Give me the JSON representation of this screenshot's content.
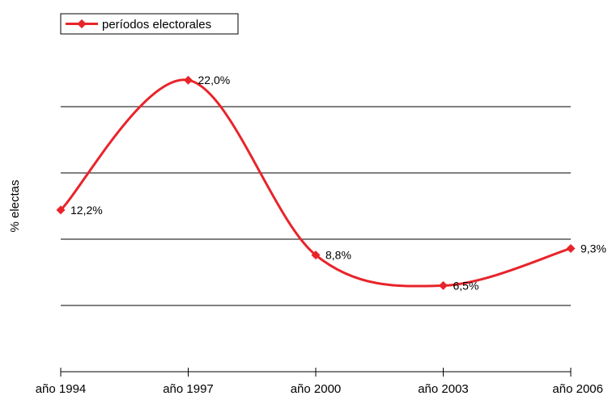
{
  "chart_data": {
    "type": "line",
    "categories": [
      "año 1994",
      "año 1997",
      "año 2000",
      "año 2003",
      "año 2006"
    ],
    "series": [
      {
        "name": "períodos electorales",
        "values": [
          12.2,
          22.0,
          8.8,
          6.5,
          9.3
        ],
        "labels": [
          "12,2%",
          "22,0%",
          "8,8%",
          "6,5%",
          "9,3%"
        ],
        "color": "#e8242a",
        "smooth": true,
        "marker": "diamond"
      }
    ],
    "title": "",
    "xlabel": "",
    "ylabel": "% electas",
    "ylim": [
      0,
      25
    ],
    "grid": true,
    "legend": "top-left"
  }
}
